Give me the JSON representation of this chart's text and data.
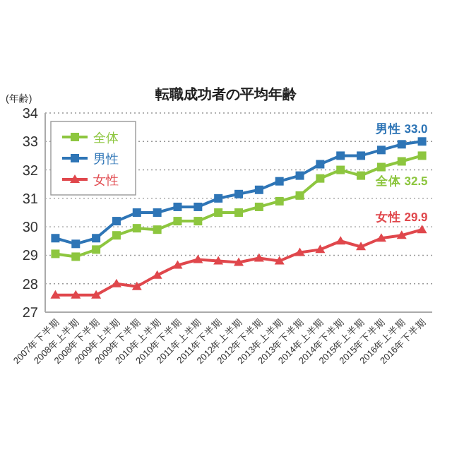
{
  "chart_data": {
    "type": "line",
    "title": "転職成功者の平均年齢",
    "ylabel": "(年齢)",
    "categories": [
      "2007年下半期",
      "2008年上半期",
      "2008年下半期",
      "2009年上半期",
      "2009年下半期",
      "2010年上半期",
      "2010年下半期",
      "2011年上半期",
      "2011年下半期",
      "2012年上半期",
      "2012年下半期",
      "2013年上半期",
      "2013年下半期",
      "2014年上半期",
      "2014年下半期",
      "2015年上半期",
      "2015年下半期",
      "2016年上半期",
      "2016年下半期"
    ],
    "series": [
      {
        "name": "全体",
        "color": "#8dc63f",
        "marker": "square",
        "values": [
          29.05,
          28.95,
          29.2,
          29.7,
          29.95,
          29.9,
          30.2,
          30.2,
          30.5,
          30.5,
          30.7,
          30.9,
          31.1,
          31.7,
          32.0,
          31.8,
          32.1,
          32.3,
          32.5
        ]
      },
      {
        "name": "男性",
        "color": "#2e75b6",
        "marker": "square",
        "values": [
          29.6,
          29.4,
          29.6,
          30.2,
          30.5,
          30.5,
          30.7,
          30.7,
          31.0,
          31.15,
          31.3,
          31.6,
          31.8,
          32.2,
          32.5,
          32.5,
          32.7,
          32.9,
          33.0
        ]
      },
      {
        "name": "女性",
        "color": "#e0474c",
        "marker": "triangle",
        "values": [
          27.6,
          27.6,
          27.6,
          28.0,
          27.9,
          28.3,
          28.65,
          28.85,
          28.8,
          28.75,
          28.9,
          28.8,
          29.1,
          29.2,
          29.5,
          29.3,
          29.6,
          29.7,
          29.9
        ]
      }
    ],
    "ylim": [
      27,
      34
    ],
    "yticks": [
      27,
      28,
      29,
      30,
      31,
      32,
      33,
      34
    ],
    "grid": "y",
    "legend": "top left",
    "line_style": "solid",
    "annotations": [
      {
        "text": "男性 33.0",
        "x": "2016年下半期",
        "y": 33.0
      },
      {
        "text": "全体 32.5",
        "x": "2016年下半期",
        "y": 32.5
      },
      {
        "text": "女性 29.9",
        "x": "2016年下半期",
        "y": 29.9
      }
    ]
  }
}
